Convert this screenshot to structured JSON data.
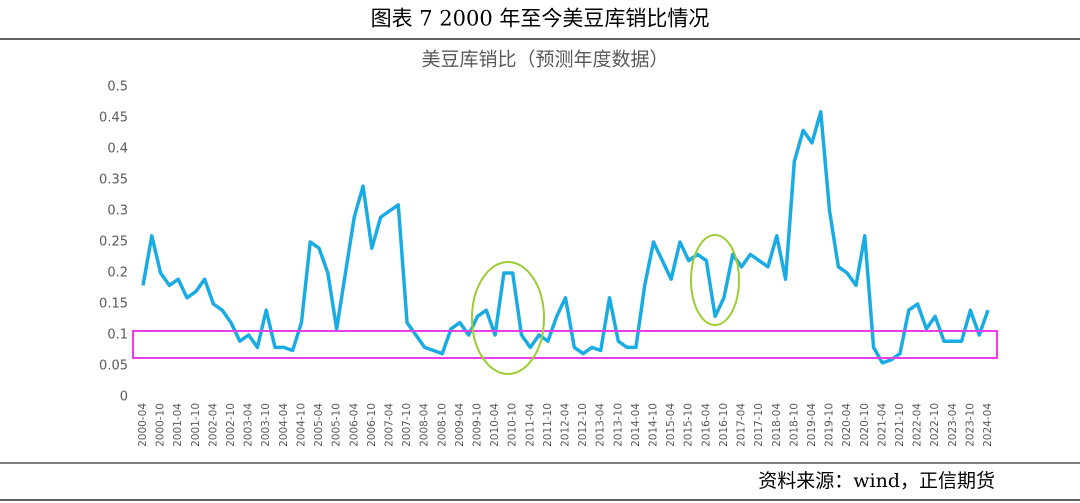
{
  "header": {
    "title": "图表 7 2000 年至今美豆库销比情况"
  },
  "footer": {
    "source": "资料来源：wind，正信期货"
  },
  "chart_data": {
    "type": "line",
    "title": "美豆库销比（预测年度数据）",
    "categories": [
      "2000-04",
      null,
      "2000-10",
      null,
      "2001-04",
      null,
      "2001-10",
      null,
      "2002-04",
      null,
      "2002-10",
      null,
      "2003-04",
      null,
      "2003-10",
      null,
      "2004-04",
      null,
      "2004-10",
      null,
      "2005-04",
      null,
      "2005-10",
      null,
      "2006-04",
      null,
      "2006-10",
      null,
      "2007-04",
      null,
      "2007-10",
      null,
      "2008-04",
      null,
      "2008-10",
      null,
      "2009-04",
      null,
      "2009-10",
      null,
      "2010-04",
      null,
      "2010-10",
      null,
      "2011-04",
      null,
      "2011-10",
      null,
      "2012-04",
      null,
      "2012-10",
      null,
      "2013-04",
      null,
      "2013-10",
      null,
      "2014-04",
      null,
      "2014-10",
      null,
      "2015-04",
      null,
      "2015-10",
      null,
      "2016-04",
      null,
      "2016-10",
      null,
      "2017-04",
      null,
      "2017-10",
      null,
      "2018-04",
      null,
      "2018-10",
      null,
      "2019-04",
      null,
      "2019-10",
      null,
      "2020-04",
      null,
      "2020-10",
      null,
      "2021-04",
      null,
      "2021-10",
      null,
      "2022-04",
      null,
      "2022-10",
      null,
      "2023-04",
      null,
      "2023-10",
      null,
      "2024-04"
    ],
    "values": [
      0.18,
      0.26,
      0.2,
      0.18,
      0.19,
      0.16,
      0.17,
      0.19,
      0.15,
      0.14,
      0.12,
      0.09,
      0.1,
      0.08,
      0.14,
      0.08,
      0.08,
      0.075,
      0.12,
      0.25,
      0.24,
      0.2,
      0.11,
      0.2,
      0.29,
      0.34,
      0.24,
      0.29,
      0.3,
      0.31,
      0.12,
      0.1,
      0.08,
      0.075,
      0.07,
      0.11,
      0.12,
      0.1,
      0.13,
      0.14,
      0.1,
      0.2,
      0.2,
      0.1,
      0.08,
      0.1,
      0.09,
      0.13,
      0.16,
      0.08,
      0.07,
      0.08,
      0.075,
      0.16,
      0.09,
      0.08,
      0.08,
      0.18,
      0.25,
      0.22,
      0.19,
      0.25,
      0.22,
      0.23,
      0.22,
      0.13,
      0.16,
      0.23,
      0.21,
      0.23,
      0.22,
      0.21,
      0.26,
      0.19,
      0.38,
      0.43,
      0.41,
      0.46,
      0.3,
      0.21,
      0.2,
      0.18,
      0.26,
      0.08,
      0.055,
      0.06,
      0.07,
      0.14,
      0.15,
      0.11,
      0.13,
      0.09,
      0.09,
      0.09,
      0.14,
      0.1,
      0.14
    ],
    "color": "#1aabe3",
    "ylim": [
      0,
      0.5
    ],
    "yticks": [
      0,
      0.05,
      0.1,
      0.15,
      0.2,
      0.25,
      0.3,
      0.35,
      0.4,
      0.45,
      0.5
    ]
  }
}
